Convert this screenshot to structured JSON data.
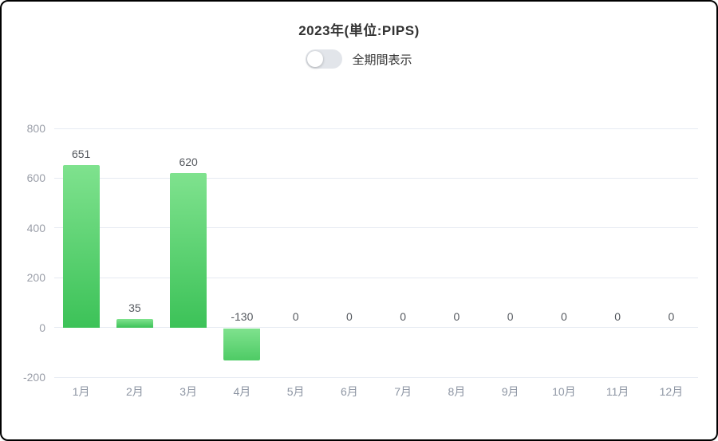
{
  "header": {
    "title": "2023年(単位:PIPS)",
    "toggle_label": "全期間表示",
    "toggle_state": "off"
  },
  "colors": {
    "bar_gradient_top": "#7fe28e",
    "bar_gradient_bottom": "#3cc258",
    "gridline": "#e6eaf2",
    "y_axis_label": "#9a9ea8",
    "x_axis_label": "#8d95a3",
    "value_label": "#55595f",
    "toggle_track": "#e2e5ea",
    "toggle_knob": "#ffffff"
  },
  "chart_data": {
    "type": "bar",
    "categories": [
      "1月",
      "2月",
      "3月",
      "4月",
      "5月",
      "6月",
      "7月",
      "8月",
      "9月",
      "10月",
      "11月",
      "12月"
    ],
    "values": [
      651,
      35,
      620,
      -130,
      0,
      0,
      0,
      0,
      0,
      0,
      0,
      0
    ],
    "value_labels": [
      "651",
      "35",
      "620",
      "-130",
      "0",
      "0",
      "0",
      "0",
      "0",
      "0",
      "0",
      "0"
    ],
    "title": "2023年(単位:PIPS)",
    "xlabel": "",
    "ylabel": "",
    "ylim": [
      -200,
      800
    ],
    "yticks": [
      800,
      600,
      400,
      200,
      0,
      -200
    ],
    "grid": true,
    "legend": false
  }
}
